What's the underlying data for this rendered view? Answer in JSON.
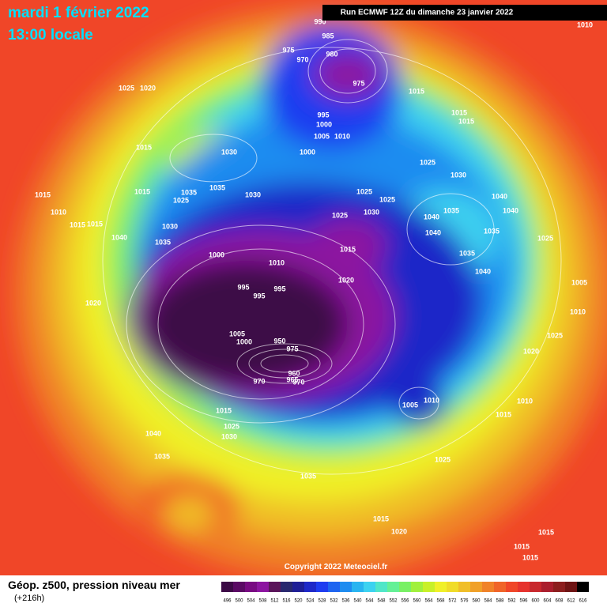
{
  "header": {
    "date": "mardi 1 février 2022",
    "time": "13:00 locale",
    "run": "Run ECMWF 12Z du dimanche 23 janvier 2022"
  },
  "footer": {
    "title": "Géop. z500, pression niveau mer",
    "lead": "(+216h)",
    "copyright": "Copyright 2022 Meteociel.fr"
  },
  "legend": {
    "labels": [
      "496",
      "500",
      "504",
      "508",
      "512",
      "516",
      "520",
      "524",
      "528",
      "532",
      "536",
      "540",
      "544",
      "548",
      "552",
      "556",
      "560",
      "564",
      "568",
      "572",
      "576",
      "580",
      "584",
      "588",
      "592",
      "596",
      "600",
      "604",
      "608",
      "612",
      "616"
    ],
    "colors": [
      "#3c0a46",
      "#5a0a64",
      "#780a82",
      "#8c14a0",
      "#5a145a",
      "#28286e",
      "#1e1e96",
      "#1e28c8",
      "#1e3cf0",
      "#1e64f0",
      "#1e8cf0",
      "#28b4f0",
      "#3cd2f0",
      "#50e6c8",
      "#64f096",
      "#78f064",
      "#a0f03c",
      "#c8f028",
      "#f0f028",
      "#f0dc28",
      "#f0be28",
      "#f0a028",
      "#f08228",
      "#f06428",
      "#f04628",
      "#e6322d",
      "#c8282d",
      "#aa1e2d",
      "#8c1e1e",
      "#6e1414",
      "#000000"
    ]
  },
  "isobar_labels": [
    "990",
    "985",
    "975",
    "970",
    "980",
    "975",
    "1015",
    "1025",
    "1020",
    "995",
    "1000",
    "1005",
    "1010",
    "1015",
    "1015",
    "1015",
    "1030",
    "1000",
    "1025",
    "1015",
    "1015",
    "1035",
    "1025",
    "1035",
    "1030",
    "1025",
    "1025",
    "1030",
    "1040",
    "1010",
    "1025",
    "1030",
    "1040",
    "1035",
    "1040",
    "1015",
    "1015",
    "1030",
    "1040",
    "1035",
    "1025",
    "1040",
    "1035",
    "1015",
    "1000",
    "1035",
    "1010",
    "1040",
    "1020",
    "1005",
    "1020",
    "995",
    "995",
    "995",
    "1010",
    "1025",
    "1005",
    "1000",
    "950",
    "975",
    "1020",
    "960",
    "965",
    "970",
    "970",
    "1005",
    "1010",
    "1010",
    "1015",
    "1015",
    "1025",
    "1040",
    "1030",
    "1035",
    "1025",
    "1035",
    "1015",
    "1020",
    "1015",
    "1015",
    "1015",
    "1010"
  ]
}
